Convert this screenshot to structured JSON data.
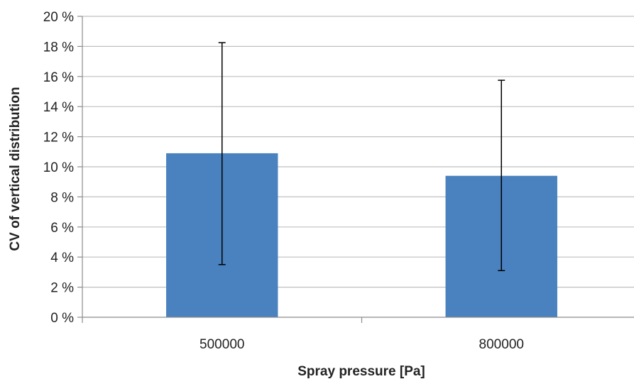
{
  "chart_data": {
    "type": "bar",
    "title": "",
    "xlabel": "Spray pressure [Pa]",
    "ylabel": "CV of vertical distribution",
    "categories": [
      "500000",
      "800000"
    ],
    "series": [
      {
        "values": [
          10.9,
          9.4
        ],
        "error_low": [
          3.5,
          3.1
        ],
        "error_high": [
          18.25,
          15.75
        ]
      }
    ],
    "ylim": [
      0,
      20
    ],
    "yticks": [
      0,
      2,
      4,
      6,
      8,
      10,
      12,
      14,
      16,
      18,
      20
    ],
    "ytick_labels": [
      "0 %",
      "2 %",
      "4 %",
      "6 %",
      "8 %",
      "10 %",
      "12 %",
      "14 %",
      "16 %",
      "18 %",
      "20 %"
    ],
    "grid": true,
    "legend": "none",
    "colors": {
      "bar": "#4a81bf",
      "grid": "#bfbfbf",
      "axis": "#8c8c8c",
      "error": "#000000"
    }
  }
}
